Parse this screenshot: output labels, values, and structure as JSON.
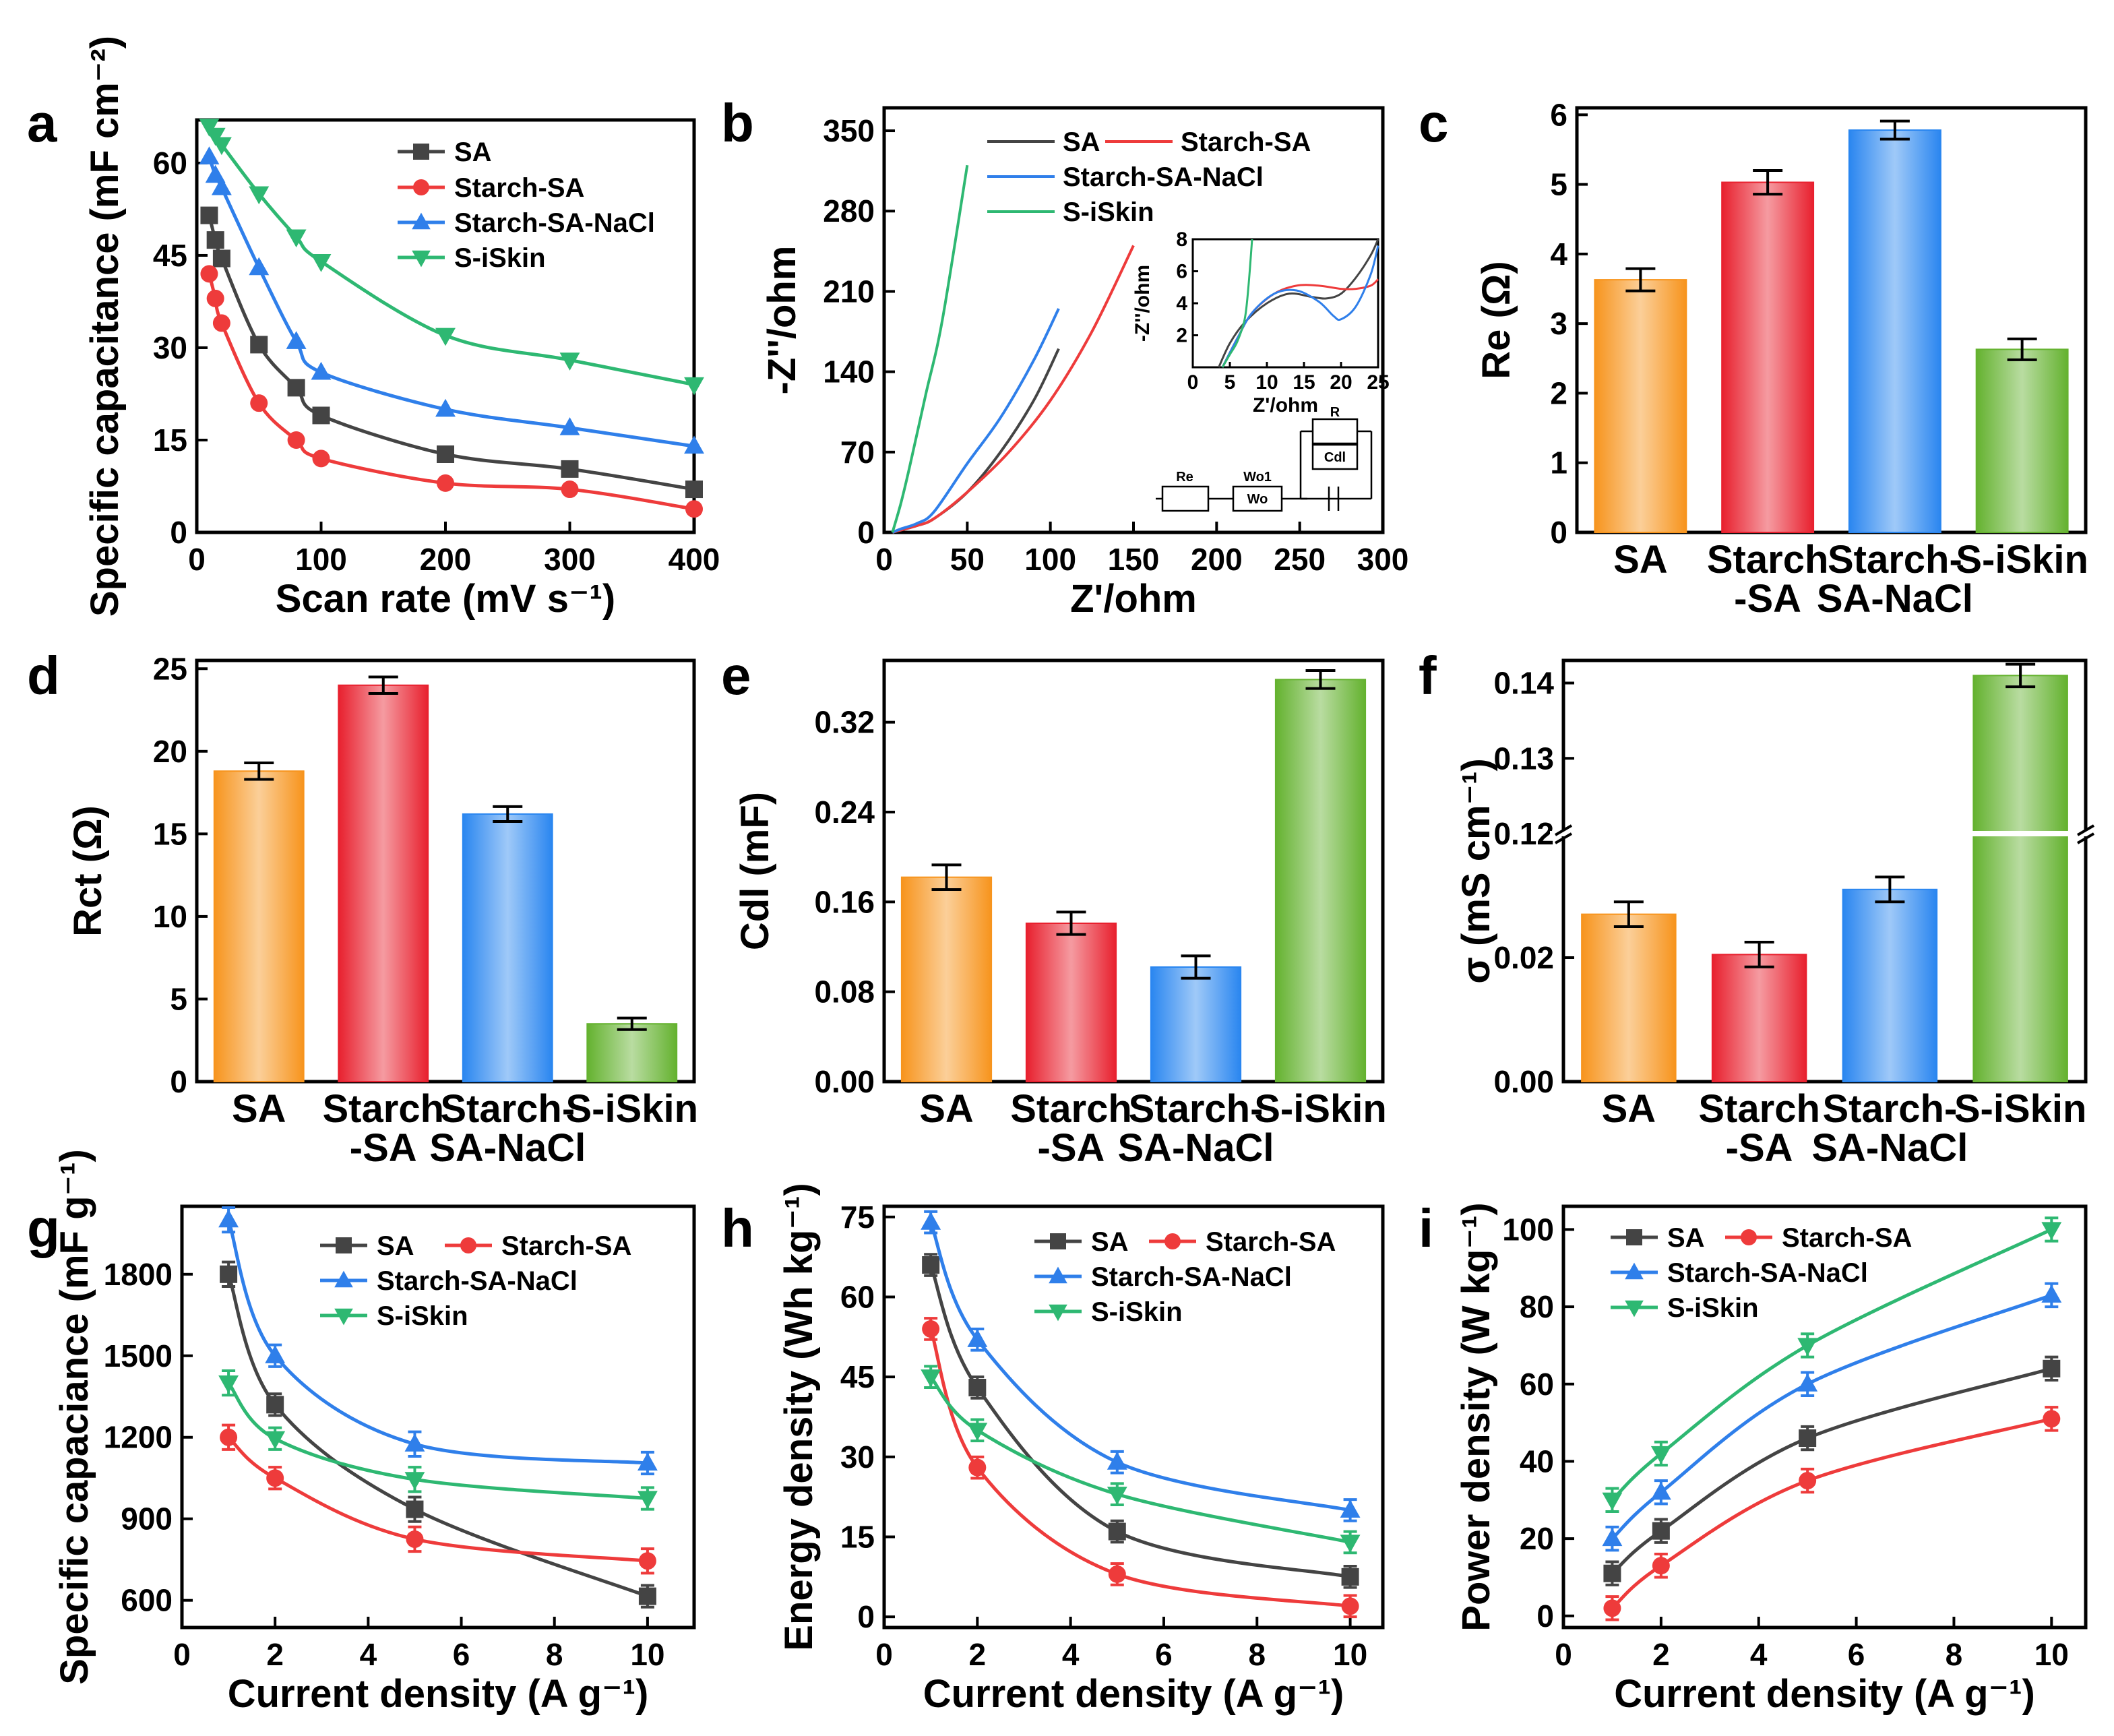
{
  "colors": {
    "SA": "#444444",
    "Starch-SA": "#ee3b3b",
    "Starch-SA-NaCl": "#2f7fea",
    "S-iSkin": "#2eb872",
    "bar_SA": "#f7941d",
    "bar_Starch-SA": "#e8202e",
    "bar_Starch-SA-NaCl": "#2a86f0",
    "bar_S-iSkin": "#64b22f"
  },
  "chart_data": [
    {
      "id": "a",
      "panel_label": "a",
      "type": "line",
      "xlabel": "Scan rate (mV s⁻¹)",
      "ylabel": "Specific capacitance (mF cm⁻²)",
      "xlim": [
        0,
        400
      ],
      "ylim": [
        0,
        67
      ],
      "xticks": [
        "0",
        "100",
        "200",
        "300",
        "400"
      ],
      "yticks": [
        "0",
        "15",
        "30",
        "45",
        "60"
      ],
      "xtick_values": [
        0,
        100,
        200,
        300,
        400
      ],
      "ytick_values": [
        0,
        15,
        30,
        45,
        60
      ],
      "legend": "top-right",
      "series": [
        {
          "name": "SA",
          "marker": "square",
          "x": [
            10,
            15,
            20,
            50,
            80,
            100,
            200,
            300,
            400
          ],
          "values": [
            51.5,
            47.5,
            44.5,
            30.5,
            23.5,
            19,
            12.7,
            10.3,
            7
          ]
        },
        {
          "name": "Starch-SA",
          "marker": "circle",
          "x": [
            10,
            15,
            20,
            50,
            80,
            100,
            200,
            300,
            400
          ],
          "values": [
            42,
            38,
            34,
            21,
            15,
            12,
            8,
            7,
            3.8
          ]
        },
        {
          "name": "Starch-SA-NaCl",
          "marker": "triangle-up",
          "x": [
            10,
            15,
            20,
            50,
            80,
            100,
            200,
            300,
            400
          ],
          "values": [
            61,
            58,
            56,
            43,
            31,
            26,
            20,
            17,
            14
          ]
        },
        {
          "name": "S-iSkin",
          "marker": "triangle-down",
          "x": [
            10,
            15,
            20,
            50,
            80,
            100,
            200,
            300,
            400
          ],
          "values": [
            66,
            64.5,
            63,
            55,
            48,
            44,
            32,
            28,
            24
          ]
        }
      ]
    },
    {
      "id": "b",
      "panel_label": "b",
      "type": "line",
      "xlabel": "Z'/ohm",
      "ylabel": "-Z''/ohm",
      "xlim": [
        0,
        300
      ],
      "ylim": [
        0,
        370
      ],
      "xticks": [
        "0",
        "50",
        "100",
        "150",
        "200",
        "250",
        "300"
      ],
      "yticks": [
        "0",
        "70",
        "140",
        "210",
        "280",
        "350"
      ],
      "xtick_values": [
        0,
        50,
        100,
        150,
        200,
        250,
        300
      ],
      "ytick_values": [
        0,
        70,
        140,
        210,
        280,
        350
      ],
      "legend": "top",
      "series": [
        {
          "name": "SA",
          "x": [
            5,
            10,
            20,
            30,
            50,
            70,
            90,
            105
          ],
          "values": [
            0,
            2,
            6,
            12,
            35,
            70,
            115,
            160
          ]
        },
        {
          "name": "Starch-SA",
          "x": [
            5,
            10,
            20,
            30,
            50,
            75,
            100,
            125,
            150
          ],
          "values": [
            0,
            2,
            6,
            12,
            35,
            70,
            115,
            175,
            250
          ]
        },
        {
          "name": "Starch-SA-NaCl",
          "x": [
            5,
            10,
            20,
            30,
            50,
            70,
            90,
            105
          ],
          "values": [
            0,
            3,
            8,
            18,
            60,
            100,
            150,
            195
          ]
        },
        {
          "name": "S-iSkin",
          "x": [
            5,
            10,
            15,
            25,
            35,
            50
          ],
          "values": [
            0,
            25,
            55,
            120,
            185,
            320
          ]
        }
      ],
      "inset": {
        "xlabel": "Z'/ohm",
        "ylabel": "-Z''/ohm",
        "xlim": [
          0,
          25
        ],
        "ylim": [
          0,
          8
        ],
        "xticks": [
          "0",
          "5",
          "10",
          "15",
          "20",
          "25"
        ],
        "yticks": [
          "2",
          "4",
          "6",
          "8"
        ],
        "xtick_values": [
          0,
          5,
          10,
          15,
          20,
          25
        ],
        "ytick_values": [
          2,
          4,
          6,
          8
        ],
        "series": [
          {
            "name": "SA",
            "x": [
              3.5,
              5,
              7,
              10,
              13,
              16,
              18,
              20,
              22,
              24,
              25
            ],
            "values": [
              0,
              1.5,
              2.8,
              4,
              4.6,
              4.4,
              4.3,
              4.6,
              5.6,
              7,
              8
            ]
          },
          {
            "name": "Starch-SA",
            "x": [
              4,
              6,
              8,
              11,
              14,
              17,
              20,
              22,
              24,
              25
            ],
            "values": [
              0,
              1.8,
              3.4,
              4.6,
              5.1,
              5.1,
              4.9,
              4.9,
              5.1,
              5.5
            ]
          },
          {
            "name": "Starch-SA-NaCl",
            "x": [
              4,
              6,
              8,
              11,
              14,
              17,
              19,
              20,
              22,
              24,
              25
            ],
            "values": [
              0,
              1.8,
              3.4,
              4.6,
              4.8,
              4.1,
              3.2,
              3,
              3.8,
              5.8,
              7.6
            ]
          },
          {
            "name": "S-iSkin",
            "x": [
              4,
              5,
              6,
              7,
              7.5,
              8
            ],
            "values": [
              0,
              0.8,
              1.6,
              3,
              5,
              8
            ]
          }
        ],
        "circuit_labels": [
          "Re",
          "Wo1",
          "Wo",
          "R",
          "Cdl"
        ]
      }
    },
    {
      "id": "c",
      "panel_label": "c",
      "type": "bar",
      "ylabel": "Re (Ω)",
      "categories": [
        "SA",
        "Starch\n-SA",
        "Starch-\nSA-NaCl",
        "S-iSkin"
      ],
      "values": [
        3.63,
        5.03,
        5.78,
        2.63
      ],
      "errors": [
        0.16,
        0.17,
        0.13,
        0.15
      ],
      "ylim": [
        0,
        6.1
      ],
      "yticks": [
        "0",
        "1",
        "2",
        "3",
        "4",
        "5",
        "6"
      ],
      "ytick_values": [
        0,
        1,
        2,
        3,
        4,
        5,
        6
      ]
    },
    {
      "id": "d",
      "panel_label": "d",
      "type": "bar",
      "ylabel": "Rct (Ω)",
      "categories": [
        "SA",
        "Starch\n-SA",
        "Starch-\nSA-NaCl",
        "S-iSkin"
      ],
      "values": [
        18.8,
        24,
        16.2,
        3.5
      ],
      "errors": [
        0.5,
        0.5,
        0.45,
        0.35
      ],
      "ylim": [
        0,
        25.5
      ],
      "yticks": [
        "0",
        "5",
        "10",
        "15",
        "20",
        "25"
      ],
      "ytick_values": [
        0,
        5,
        10,
        15,
        20,
        25
      ]
    },
    {
      "id": "e",
      "panel_label": "e",
      "type": "bar",
      "ylabel": "Cdl (mF)",
      "categories": [
        "SA",
        "Starch\n-SA",
        "Starch-\nSA-NaCl",
        "S-iSkin"
      ],
      "values": [
        0.182,
        0.141,
        0.102,
        0.358
      ],
      "errors": [
        0.011,
        0.01,
        0.01,
        0.008
      ],
      "ylim": [
        0,
        0.375
      ],
      "yticks": [
        "0.00",
        "0.08",
        "0.16",
        "0.24",
        "0.32"
      ],
      "ytick_values": [
        0,
        0.08,
        0.16,
        0.24,
        0.32
      ]
    },
    {
      "id": "f",
      "panel_label": "f",
      "type": "bar",
      "ylabel": "σ (mS cm⁻¹)",
      "categories": [
        "SA",
        "Starch\n-SA",
        "Starch-\nSA-NaCl",
        "S-iSkin"
      ],
      "values": [
        0.027,
        0.0205,
        0.031,
        0.141
      ],
      "errors": [
        0.002,
        0.002,
        0.002,
        0.0015
      ],
      "broken_axis": {
        "lower": [
          0,
          0.04
        ],
        "upper": [
          0.12,
          0.143
        ]
      },
      "yticks_lower": [
        "0.00",
        "0.02"
      ],
      "ytick_values_lower": [
        0,
        0.02
      ],
      "yticks_upper": [
        "0.12",
        "0.13",
        "0.14"
      ],
      "ytick_values_upper": [
        0.12,
        0.13,
        0.14
      ]
    },
    {
      "id": "g",
      "panel_label": "g",
      "type": "line",
      "xlabel": "Current density (A g⁻¹)",
      "ylabel": "Specific capaciance (mF g⁻¹)",
      "xlim": [
        0,
        11
      ],
      "ylim": [
        500,
        2050
      ],
      "xticks": [
        "0",
        "2",
        "4",
        "6",
        "8",
        "10"
      ],
      "yticks": [
        "600",
        "900",
        "1200",
        "1500",
        "1800"
      ],
      "xtick_values": [
        0,
        2,
        4,
        6,
        8,
        10
      ],
      "ytick_values": [
        600,
        900,
        1200,
        1500,
        1800
      ],
      "legend": "top-right",
      "series": [
        {
          "name": "SA",
          "marker": "square",
          "x": [
            1,
            2,
            5,
            10
          ],
          "values": [
            1800,
            1320,
            935,
            615
          ],
          "errors": [
            45,
            40,
            45,
            40
          ]
        },
        {
          "name": "Starch-SA",
          "marker": "circle",
          "x": [
            1,
            2,
            5,
            10
          ],
          "values": [
            1200,
            1050,
            825,
            745
          ],
          "errors": [
            45,
            40,
            45,
            45
          ]
        },
        {
          "name": "Starch-SA-NaCl",
          "marker": "triangle-up",
          "x": [
            1,
            2,
            5,
            10
          ],
          "values": [
            2000,
            1500,
            1175,
            1105
          ],
          "errors": [
            45,
            40,
            45,
            40
          ]
        },
        {
          "name": "S-iSkin",
          "marker": "triangle-down",
          "x": [
            1,
            2,
            5,
            10
          ],
          "values": [
            1400,
            1195,
            1045,
            975
          ],
          "errors": [
            45,
            40,
            45,
            40
          ]
        }
      ]
    },
    {
      "id": "h",
      "panel_label": "h",
      "type": "line",
      "xlabel": "Current density (A g⁻¹)",
      "ylabel": "Energy density (Wh kg⁻¹)",
      "xlim": [
        0,
        10.7
      ],
      "ylim": [
        -2,
        77
      ],
      "xticks": [
        "0",
        "2",
        "4",
        "6",
        "8",
        "10"
      ],
      "yticks": [
        "0",
        "15",
        "30",
        "45",
        "60",
        "75"
      ],
      "xtick_values": [
        0,
        2,
        4,
        6,
        8,
        10
      ],
      "ytick_values": [
        0,
        15,
        30,
        45,
        60,
        75
      ],
      "legend": "top-right",
      "series": [
        {
          "name": "SA",
          "marker": "square",
          "x": [
            1,
            2,
            5,
            10
          ],
          "values": [
            66,
            43,
            16,
            7.5
          ],
          "errors": [
            2,
            2,
            2,
            2
          ]
        },
        {
          "name": "Starch-SA",
          "marker": "circle",
          "x": [
            1,
            2,
            5,
            10
          ],
          "values": [
            54,
            28,
            8,
            2
          ],
          "errors": [
            2,
            2,
            2,
            2
          ]
        },
        {
          "name": "Starch-SA-NaCl",
          "marker": "triangle-up",
          "x": [
            1,
            2,
            5,
            10
          ],
          "values": [
            74,
            52,
            29,
            20
          ],
          "errors": [
            2,
            2,
            2,
            2
          ]
        },
        {
          "name": "S-iSkin",
          "marker": "triangle-down",
          "x": [
            1,
            2,
            5,
            10
          ],
          "values": [
            45,
            35,
            23,
            14
          ],
          "errors": [
            2,
            2,
            2,
            2
          ]
        }
      ]
    },
    {
      "id": "i",
      "panel_label": "i",
      "type": "line",
      "xlabel": "Current density (A g⁻¹)",
      "ylabel": "Power density (W kg⁻¹)",
      "xlim": [
        0,
        10.7
      ],
      "ylim": [
        -3,
        106
      ],
      "xticks": [
        "0",
        "2",
        "4",
        "6",
        "8",
        "10"
      ],
      "yticks": [
        "0",
        "20",
        "40",
        "60",
        "80",
        "100"
      ],
      "xtick_values": [
        0,
        2,
        4,
        6,
        8,
        10
      ],
      "ytick_values": [
        0,
        20,
        40,
        60,
        80,
        100
      ],
      "legend": "top-left",
      "series": [
        {
          "name": "SA",
          "marker": "square",
          "x": [
            1,
            2,
            5,
            10
          ],
          "values": [
            11,
            22,
            46,
            64
          ],
          "errors": [
            3,
            3,
            3,
            3
          ]
        },
        {
          "name": "Starch-SA",
          "marker": "circle",
          "x": [
            1,
            2,
            5,
            10
          ],
          "values": [
            2,
            13,
            35,
            51
          ],
          "errors": [
            3,
            3,
            3,
            3
          ]
        },
        {
          "name": "Starch-SA-NaCl",
          "marker": "triangle-up",
          "x": [
            1,
            2,
            5,
            10
          ],
          "values": [
            20,
            32,
            60,
            83
          ],
          "errors": [
            3,
            3,
            3,
            3
          ]
        },
        {
          "name": "S-iSkin",
          "marker": "triangle-down",
          "x": [
            1,
            2,
            5,
            10
          ],
          "values": [
            30,
            42,
            70,
            100
          ],
          "errors": [
            3,
            3,
            3,
            3
          ]
        }
      ]
    }
  ]
}
